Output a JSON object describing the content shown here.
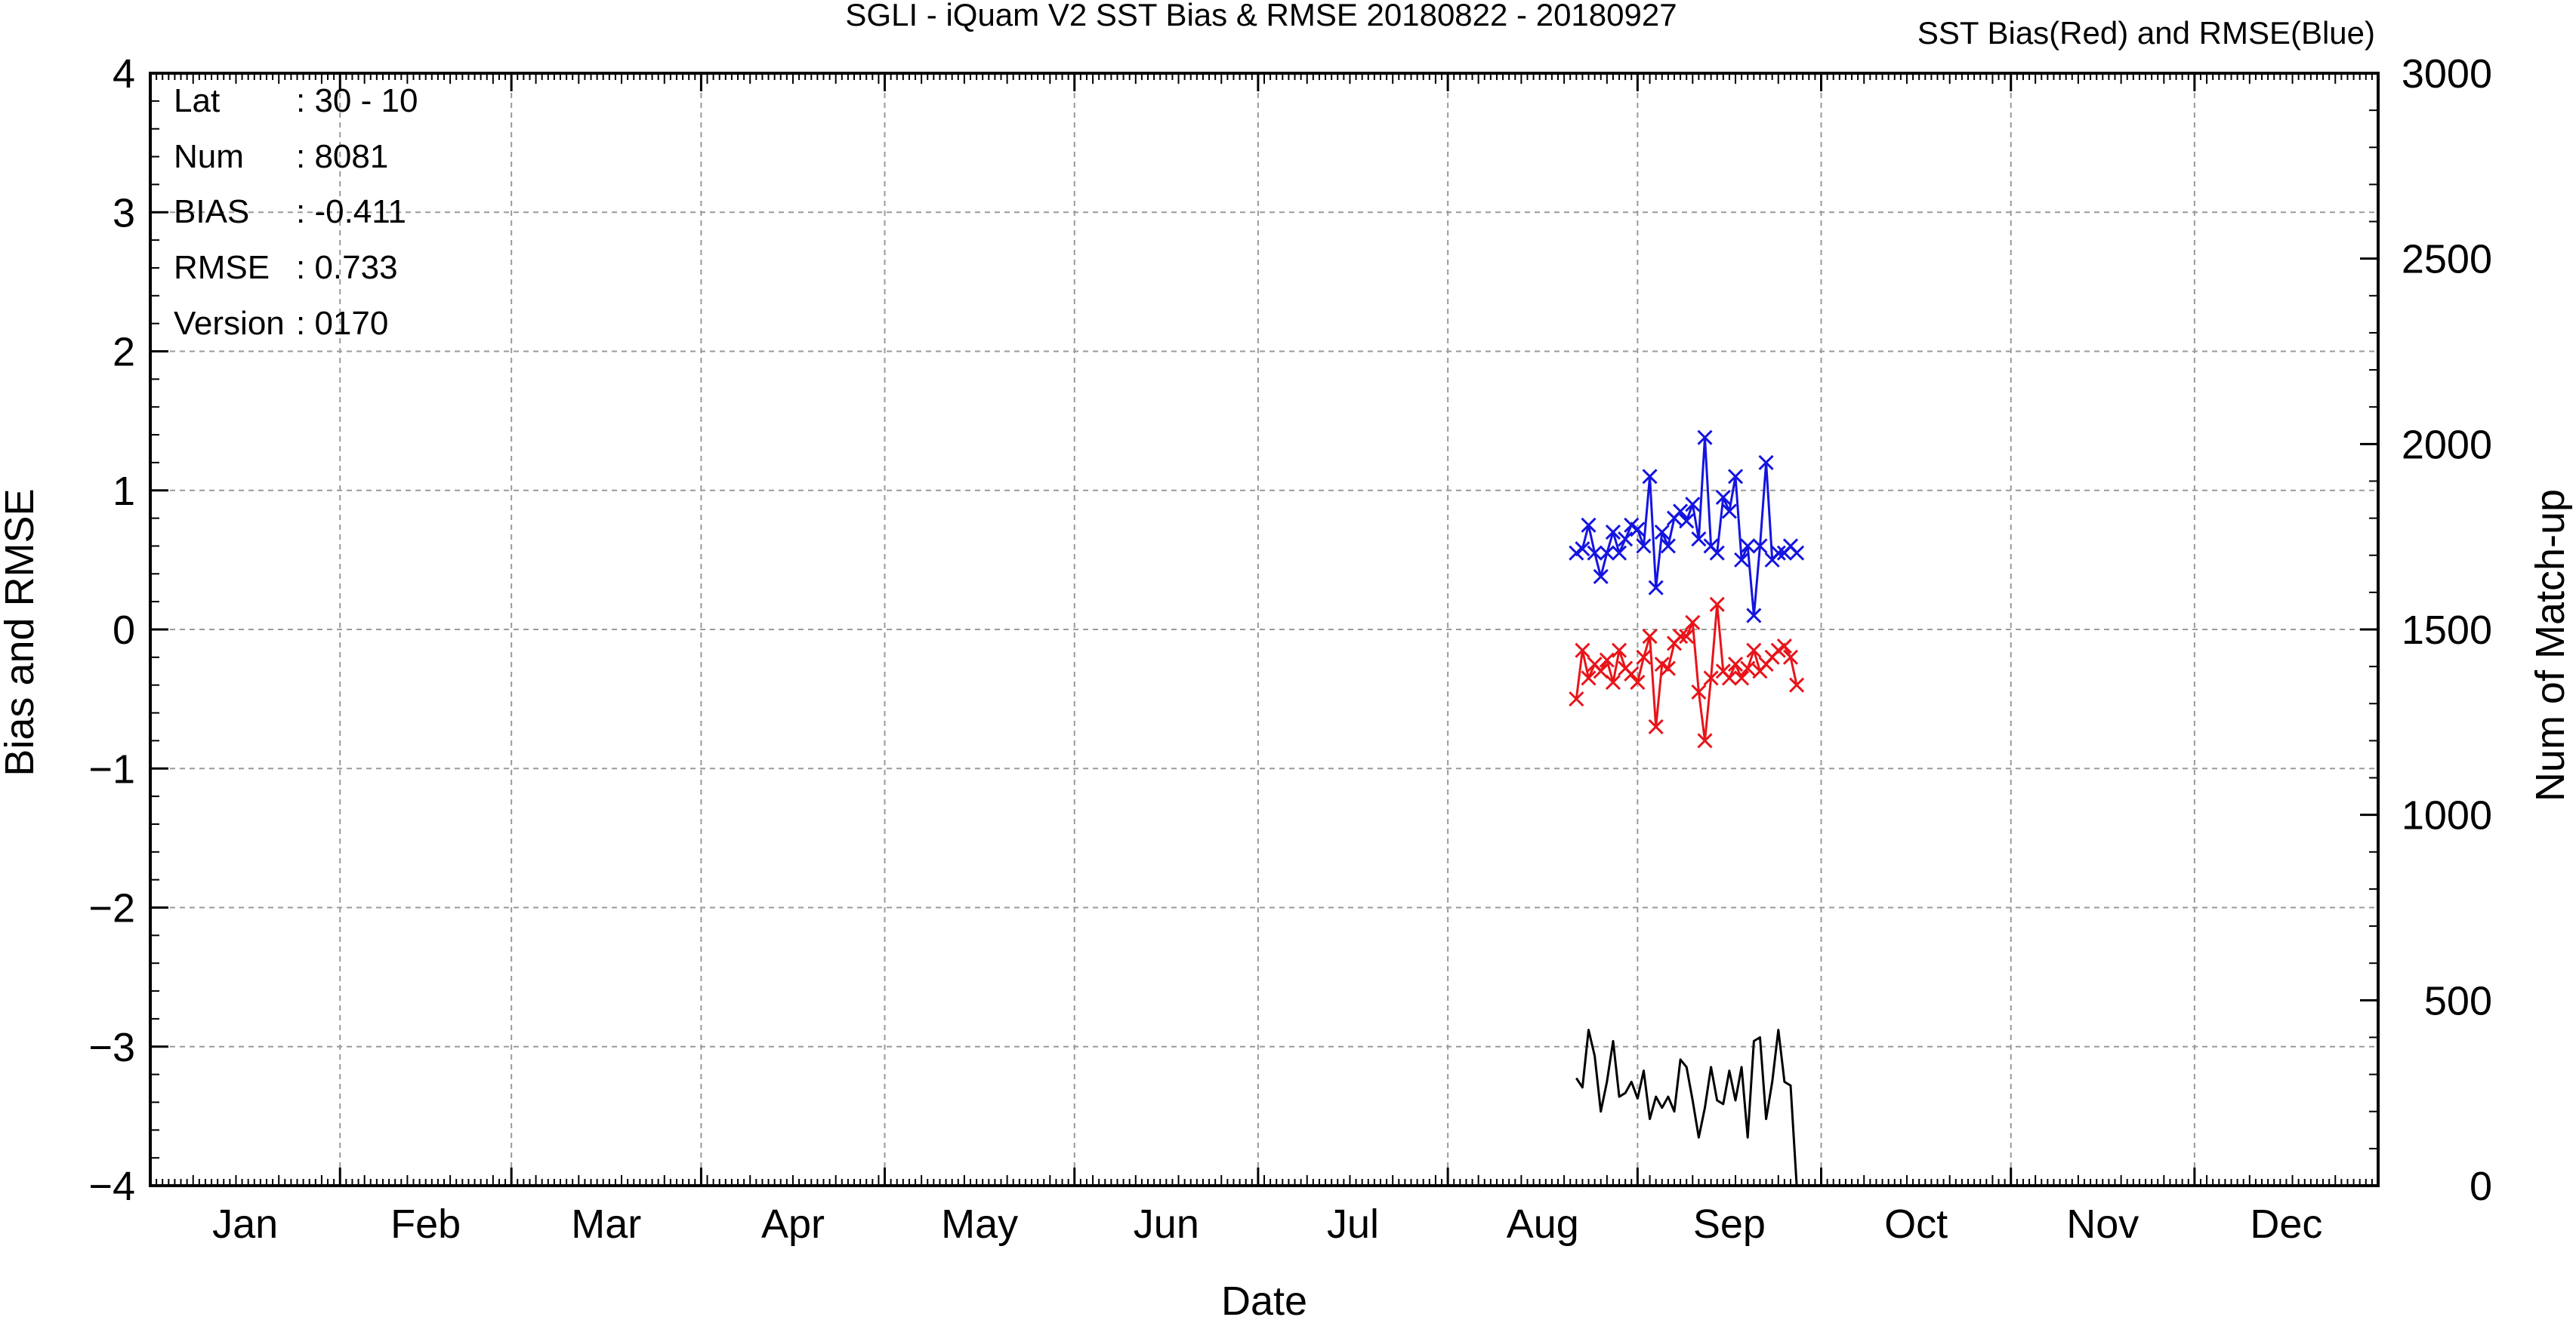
{
  "chart_data": {
    "type": "line",
    "title": "SGLI - iQuam V2 SST Bias & RMSE 20180822 - 20180927",
    "subtitle": "SST Bias(Red) and RMSE(Blue)",
    "xlabel": "Date",
    "ylabel": "Bias and RMSE",
    "y2label": "Num of Match-up",
    "months": [
      "Jan",
      "Feb",
      "Mar",
      "Apr",
      "May",
      "Jun",
      "Jul",
      "Aug",
      "Sep",
      "Oct",
      "Nov",
      "Dec"
    ],
    "xlim": [
      "2018-01-01",
      "2018-12-31"
    ],
    "ylim": [
      -4,
      4
    ],
    "y2lim": [
      0,
      3000
    ],
    "yticks": [
      -4,
      -3,
      -2,
      -1,
      0,
      1,
      2,
      3,
      4
    ],
    "y2ticks": [
      0,
      500,
      1000,
      1500,
      2000,
      2500,
      3000
    ],
    "grid": true,
    "info": {
      "labels": [
        "Lat",
        "Num",
        "BIAS",
        "RMSE",
        "Version"
      ],
      "values": [
        ": 30 - 10",
        ": 8081",
        ": -0.411",
        ": 0.733",
        ": 0170"
      ]
    },
    "colors": {
      "bias": "#e8141a",
      "rmse": "#1414e0",
      "count": "#000000",
      "grid": "#9a9a9a"
    },
    "series": [
      {
        "axis": "left",
        "color": "#e8141a",
        "marker": "x",
        "x": [
          "2018-08-22",
          "2018-08-23",
          "2018-08-24",
          "2018-08-25",
          "2018-08-26",
          "2018-08-27",
          "2018-08-28",
          "2018-08-29",
          "2018-08-30",
          "2018-08-31",
          "2018-09-01",
          "2018-09-02",
          "2018-09-03",
          "2018-09-04",
          "2018-09-05",
          "2018-09-06",
          "2018-09-07",
          "2018-09-08",
          "2018-09-09",
          "2018-09-10",
          "2018-09-11",
          "2018-09-12",
          "2018-09-13",
          "2018-09-14",
          "2018-09-15",
          "2018-09-16",
          "2018-09-17",
          "2018-09-18",
          "2018-09-19",
          "2018-09-20",
          "2018-09-21",
          "2018-09-22",
          "2018-09-23",
          "2018-09-24",
          "2018-09-25",
          "2018-09-26",
          "2018-09-27"
        ],
        "values": [
          -0.5,
          -0.15,
          -0.35,
          -0.25,
          -0.3,
          -0.22,
          -0.38,
          -0.15,
          -0.28,
          -0.32,
          -0.38,
          -0.2,
          -0.05,
          -0.7,
          -0.25,
          -0.28,
          -0.1,
          -0.05,
          -0.05,
          0.05,
          -0.45,
          -0.8,
          -0.35,
          0.18,
          -0.3,
          -0.35,
          -0.25,
          -0.35,
          -0.28,
          -0.15,
          -0.3,
          -0.25,
          -0.2,
          -0.15,
          -0.12,
          -0.2,
          -0.4
        ]
      },
      {
        "axis": "left",
        "color": "#1414e0",
        "marker": "x",
        "x": [
          "2018-08-22",
          "2018-08-23",
          "2018-08-24",
          "2018-08-25",
          "2018-08-26",
          "2018-08-27",
          "2018-08-28",
          "2018-08-29",
          "2018-08-30",
          "2018-08-31",
          "2018-09-01",
          "2018-09-02",
          "2018-09-03",
          "2018-09-04",
          "2018-09-05",
          "2018-09-06",
          "2018-09-07",
          "2018-09-08",
          "2018-09-09",
          "2018-09-10",
          "2018-09-11",
          "2018-09-12",
          "2018-09-13",
          "2018-09-14",
          "2018-09-15",
          "2018-09-16",
          "2018-09-17",
          "2018-09-18",
          "2018-09-19",
          "2018-09-20",
          "2018-09-21",
          "2018-09-22",
          "2018-09-23",
          "2018-09-24",
          "2018-09-25",
          "2018-09-26",
          "2018-09-27"
        ],
        "values": [
          0.55,
          0.58,
          0.75,
          0.55,
          0.38,
          0.55,
          0.7,
          0.55,
          0.65,
          0.75,
          0.72,
          0.6,
          1.1,
          0.3,
          0.7,
          0.6,
          0.8,
          0.85,
          0.78,
          0.9,
          0.65,
          1.38,
          0.6,
          0.55,
          0.95,
          0.85,
          1.1,
          0.5,
          0.6,
          0.1,
          0.6,
          1.2,
          0.5,
          0.55,
          0.55,
          0.6,
          0.55
        ]
      },
      {
        "axis": "right",
        "color": "#000000",
        "marker": "none",
        "x": [
          "2018-08-22",
          "2018-08-23",
          "2018-08-24",
          "2018-08-25",
          "2018-08-26",
          "2018-08-27",
          "2018-08-28",
          "2018-08-29",
          "2018-08-30",
          "2018-08-31",
          "2018-09-01",
          "2018-09-02",
          "2018-09-03",
          "2018-09-04",
          "2018-09-05",
          "2018-09-06",
          "2018-09-07",
          "2018-09-08",
          "2018-09-09",
          "2018-09-10",
          "2018-09-11",
          "2018-09-12",
          "2018-09-13",
          "2018-09-14",
          "2018-09-15",
          "2018-09-16",
          "2018-09-17",
          "2018-09-18",
          "2018-09-19",
          "2018-09-20",
          "2018-09-21",
          "2018-09-22",
          "2018-09-23",
          "2018-09-24",
          "2018-09-25",
          "2018-09-26",
          "2018-09-27"
        ],
        "values": [
          290,
          265,
          420,
          350,
          200,
          280,
          390,
          240,
          250,
          280,
          235,
          310,
          180,
          240,
          210,
          240,
          200,
          340,
          320,
          230,
          130,
          210,
          320,
          230,
          220,
          310,
          230,
          320,
          130,
          390,
          400,
          180,
          280,
          420,
          280,
          270,
          0
        ]
      }
    ]
  }
}
